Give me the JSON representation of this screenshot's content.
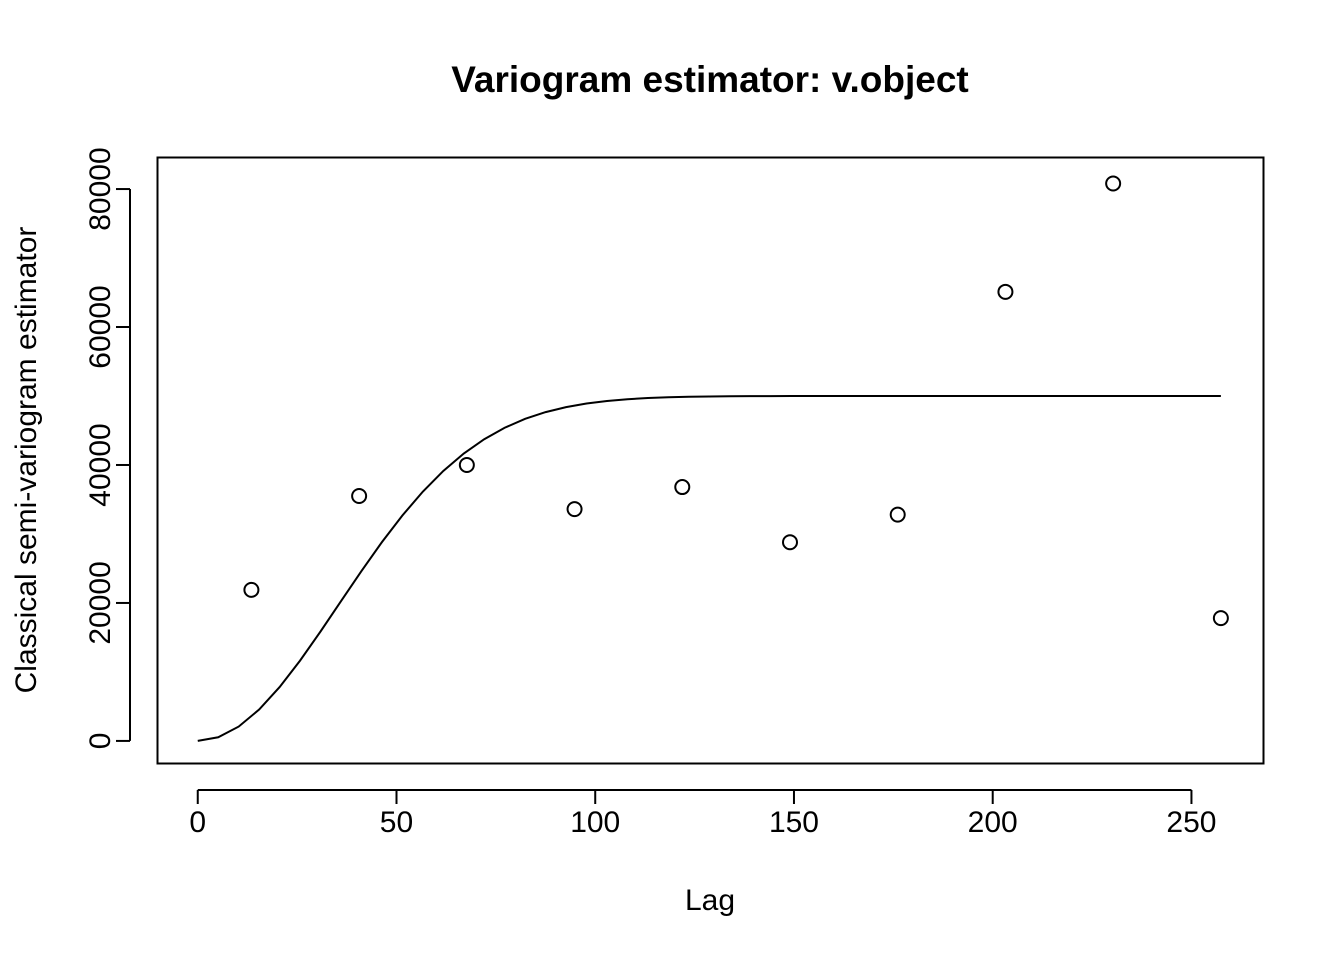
{
  "chart_data": {
    "type": "scatter",
    "title": "Variogram estimator: v.object",
    "xlabel": "Lag",
    "ylabel": "Classical semi-variogram estimator",
    "xlim": [
      -10,
      268
    ],
    "ylim": [
      -3200,
      84500
    ],
    "xticks": [
      0,
      50,
      100,
      150,
      200,
      250
    ],
    "xtick_labels": [
      "0",
      "50",
      "100",
      "150",
      "200",
      "250"
    ],
    "yticks": [
      0,
      20000,
      40000,
      60000,
      80000
    ],
    "ytick_labels": [
      "0",
      "20000",
      "40000",
      "60000",
      "80000"
    ],
    "grid": false,
    "legend": "none",
    "series": [
      {
        "kind": "points",
        "marker": "open-circle",
        "x": [
          13.5,
          40.6,
          67.7,
          94.8,
          121.9,
          149.0,
          176.1,
          203.2,
          230.3,
          257.4
        ],
        "y": [
          21900,
          35500,
          40000,
          33600,
          36800,
          28800,
          32800,
          65100,
          80800,
          17800
        ]
      },
      {
        "kind": "line",
        "model": "gaussian",
        "sill": 50000,
        "range": 50,
        "x_start": 0,
        "x_end": 257.4
      }
    ]
  }
}
